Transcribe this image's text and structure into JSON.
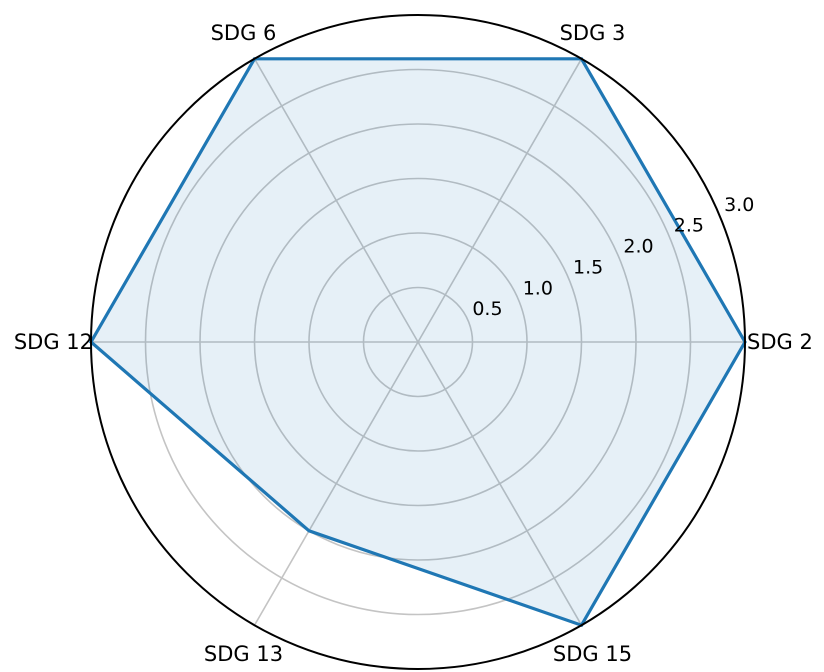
{
  "chart_data": {
    "type": "radar",
    "categories": [
      "SDG 2",
      "SDG 3",
      "SDG 6",
      "SDG 12",
      "SDG 13",
      "SDG 15"
    ],
    "values": [
      3.0,
      3.0,
      3.0,
      3.0,
      2.0,
      3.0
    ],
    "rlim": [
      0,
      3.0
    ],
    "radial_ticks": [
      0.5,
      1.0,
      1.5,
      2.0,
      2.5,
      3.0
    ],
    "radial_tick_labels": [
      "0.5",
      "1.0",
      "1.5",
      "2.0",
      "2.5",
      "3.0"
    ],
    "grid": true,
    "title": "",
    "colors": {
      "line": "#1f77b4",
      "fill": "#1f77b4",
      "grid": "#c4c4c4",
      "frame": "#000000"
    }
  }
}
